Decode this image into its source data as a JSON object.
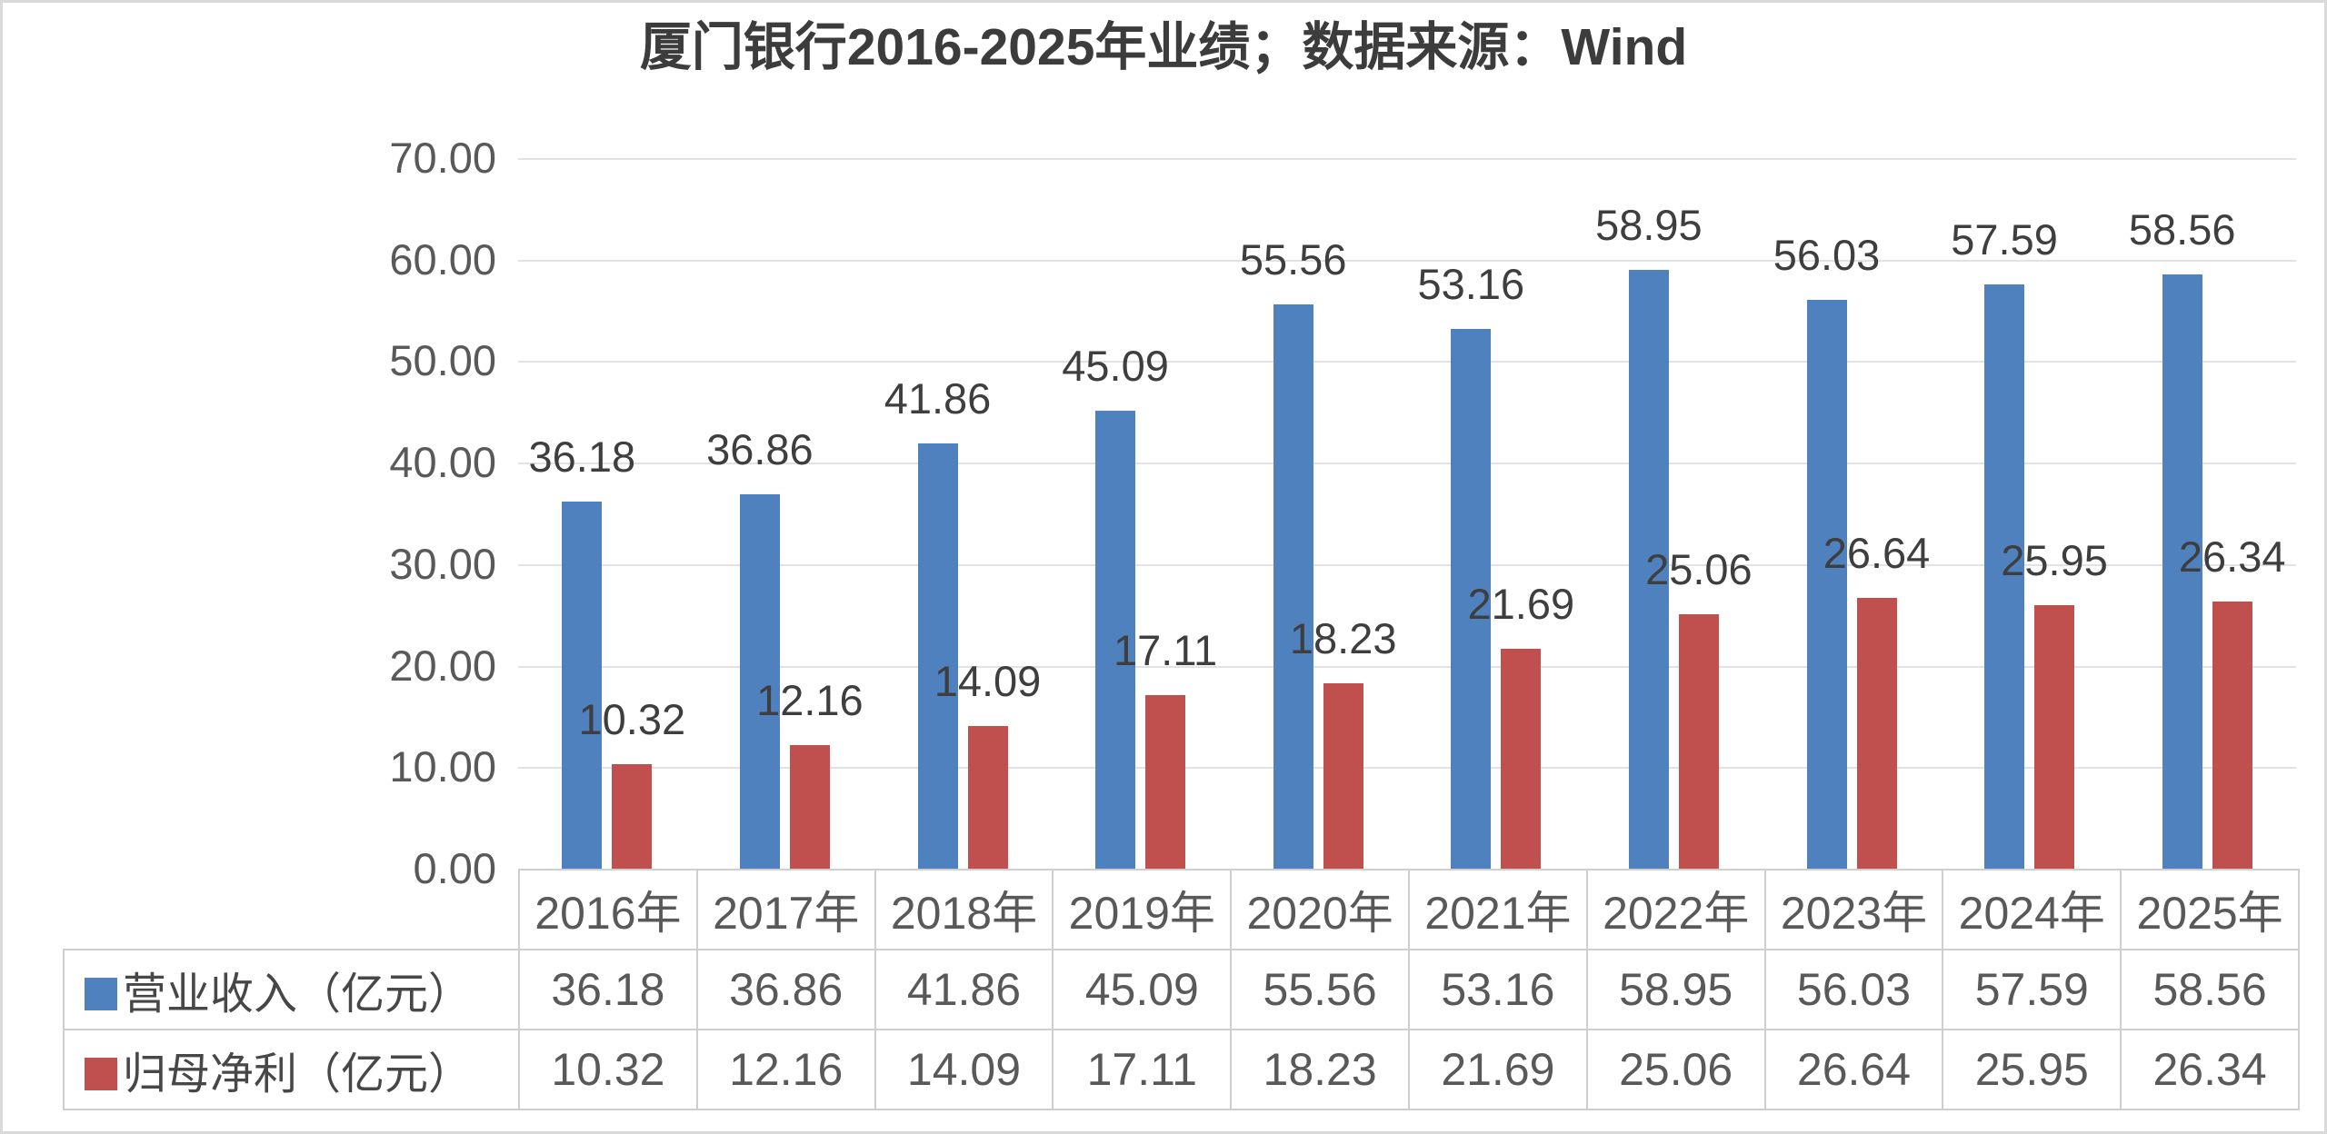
{
  "title": {
    "full": "厦门银行2016-2025年业绩；数据来源：Wind",
    "parts": [
      "厦门银行",
      "2016-2025",
      "年业绩；数据来源：",
      "Wind"
    ]
  },
  "chart_data": {
    "type": "bar",
    "title": "厦门银行2016-2025年业绩；数据来源：Wind",
    "categories": [
      "2016年",
      "2017年",
      "2018年",
      "2019年",
      "2020年",
      "2021年",
      "2022年",
      "2023年",
      "2024年",
      "2025年"
    ],
    "series": [
      {
        "name": "营业收入（亿元）",
        "color": "#4e81bd",
        "values": [
          36.18,
          36.86,
          41.86,
          45.09,
          55.56,
          53.16,
          58.95,
          56.03,
          57.59,
          58.56
        ]
      },
      {
        "name": "归母净利（亿元）",
        "color": "#c0504d",
        "values": [
          10.32,
          12.16,
          14.09,
          17.11,
          18.23,
          21.69,
          25.06,
          26.64,
          25.95,
          26.34
        ]
      }
    ],
    "ylim": [
      0,
      70
    ],
    "ytick_step": 10,
    "ytick_labels": [
      "70.00",
      "60.00",
      "50.00",
      "40.00",
      "30.00",
      "20.00",
      "10.00",
      "0.00"
    ],
    "grid": true,
    "value_label_decimals": 2,
    "legend_position": "table-left-column"
  },
  "colors": {
    "revenue_bar": "#4e81bd",
    "profit_bar": "#c0504d",
    "grid_line": "#e2e2e2",
    "table_border": "#cfcfcf",
    "axis_text": "#595959",
    "label_text": "#3e3e3e"
  }
}
